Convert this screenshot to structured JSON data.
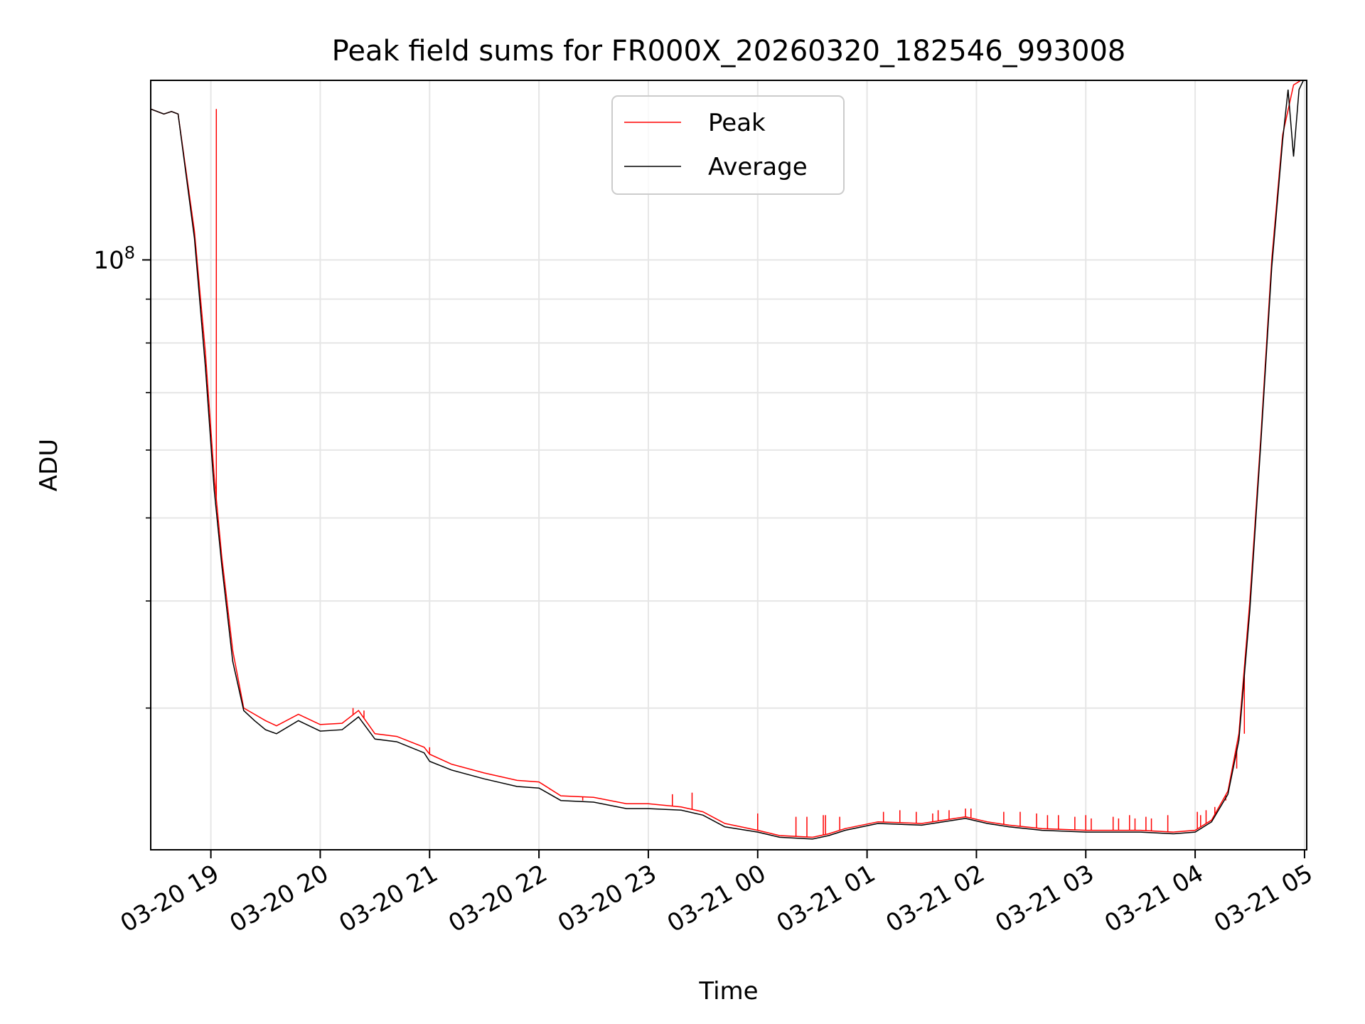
{
  "chart_data": {
    "type": "line",
    "title": "Peak field sums for FR000X_20260320_182546_993008",
    "xlabel": "Time",
    "ylabel": "ADU",
    "yscale": "log",
    "ylim": [
      20500000,
      162000000
    ],
    "xlim": [
      -0.55,
      10.02
    ],
    "grid": true,
    "legend_position": "top-center",
    "y_major_ticks": [
      {
        "value": 100000000,
        "mantissa": "10",
        "exponent": "8"
      }
    ],
    "y_minor_ticks": [
      30000000,
      40000000,
      50000000,
      60000000,
      70000000,
      80000000,
      90000000
    ],
    "x_ticks": [
      {
        "value": 0,
        "label": "03-20 19"
      },
      {
        "value": 1,
        "label": "03-20 20"
      },
      {
        "value": 2,
        "label": "03-20 21"
      },
      {
        "value": 3,
        "label": "03-20 22"
      },
      {
        "value": 4,
        "label": "03-20 23"
      },
      {
        "value": 5,
        "label": "03-21 00"
      },
      {
        "value": 6,
        "label": "03-21 01"
      },
      {
        "value": 7,
        "label": "03-21 02"
      },
      {
        "value": 8,
        "label": "03-21 03"
      },
      {
        "value": 9,
        "label": "03-21 04"
      },
      {
        "value": 10,
        "label": "03-21 05"
      }
    ],
    "x_unit_note": "hours since 2026-03-20 19:00",
    "series": [
      {
        "name": "Peak",
        "color": "#ff0000",
        "points": [
          [
            -0.55,
            150000000
          ],
          [
            -0.43,
            148000000
          ],
          [
            -0.36,
            149000000
          ],
          [
            -0.3,
            148000000
          ],
          [
            -0.15,
            108000000
          ],
          [
            -0.05,
            78000000
          ],
          [
            0.03,
            56000000
          ],
          [
            0.1,
            45000000
          ],
          [
            0.2,
            35000000
          ],
          [
            0.3,
            30000000
          ],
          [
            0.4,
            29500000
          ],
          [
            0.5,
            29000000
          ],
          [
            0.6,
            28600000
          ],
          [
            0.8,
            29500000
          ],
          [
            1.0,
            28700000
          ],
          [
            1.2,
            28800000
          ],
          [
            1.35,
            29800000
          ],
          [
            1.5,
            28000000
          ],
          [
            1.7,
            27800000
          ],
          [
            1.95,
            27000000
          ],
          [
            2.0,
            26500000
          ],
          [
            2.2,
            25800000
          ],
          [
            2.5,
            25200000
          ],
          [
            2.8,
            24700000
          ],
          [
            3.0,
            24600000
          ],
          [
            3.2,
            23700000
          ],
          [
            3.5,
            23600000
          ],
          [
            3.8,
            23200000
          ],
          [
            4.0,
            23200000
          ],
          [
            4.3,
            23000000
          ],
          [
            4.5,
            22700000
          ],
          [
            4.7,
            22000000
          ],
          [
            5.0,
            21600000
          ],
          [
            5.2,
            21300000
          ],
          [
            5.5,
            21200000
          ],
          [
            5.65,
            21400000
          ],
          [
            5.8,
            21700000
          ],
          [
            6.1,
            22100000
          ],
          [
            6.5,
            22000000
          ],
          [
            6.9,
            22400000
          ],
          [
            7.1,
            22100000
          ],
          [
            7.3,
            21900000
          ],
          [
            7.6,
            21700000
          ],
          [
            8.0,
            21600000
          ],
          [
            8.5,
            21600000
          ],
          [
            8.8,
            21500000
          ],
          [
            9.0,
            21600000
          ],
          [
            9.15,
            22200000
          ],
          [
            9.3,
            24000000
          ],
          [
            9.4,
            28000000
          ],
          [
            9.5,
            40000000
          ],
          [
            9.6,
            62000000
          ],
          [
            9.7,
            100000000
          ],
          [
            9.8,
            140000000
          ],
          [
            9.9,
            160000000
          ],
          [
            10.0,
            163000000
          ]
        ],
        "spikes": [
          [
            0.05,
            150000000
          ],
          [
            1.3,
            30000000
          ],
          [
            1.4,
            29800000
          ],
          [
            2.0,
            27000000
          ],
          [
            3.1,
            24100000
          ],
          [
            3.4,
            23400000
          ],
          [
            4.22,
            23800000
          ],
          [
            4.4,
            23900000
          ],
          [
            5.0,
            22600000
          ],
          [
            5.35,
            22400000
          ],
          [
            5.45,
            22400000
          ],
          [
            5.6,
            22500000
          ],
          [
            5.62,
            22500000
          ],
          [
            5.75,
            22400000
          ],
          [
            6.15,
            22700000
          ],
          [
            6.3,
            22800000
          ],
          [
            6.45,
            22700000
          ],
          [
            6.6,
            22600000
          ],
          [
            6.65,
            22800000
          ],
          [
            6.75,
            22800000
          ],
          [
            6.9,
            22900000
          ],
          [
            6.95,
            22900000
          ],
          [
            7.25,
            22700000
          ],
          [
            7.4,
            22700000
          ],
          [
            7.55,
            22600000
          ],
          [
            7.65,
            22500000
          ],
          [
            7.75,
            22500000
          ],
          [
            7.9,
            22400000
          ],
          [
            8.0,
            22500000
          ],
          [
            8.05,
            22300000
          ],
          [
            8.25,
            22400000
          ],
          [
            8.3,
            22300000
          ],
          [
            8.4,
            22500000
          ],
          [
            8.45,
            22300000
          ],
          [
            8.55,
            22400000
          ],
          [
            8.6,
            22300000
          ],
          [
            8.75,
            22500000
          ],
          [
            9.02,
            22700000
          ],
          [
            9.05,
            22500000
          ],
          [
            9.1,
            22800000
          ],
          [
            9.18,
            23000000
          ],
          [
            9.28,
            23400000
          ],
          [
            9.38,
            25500000
          ],
          [
            9.45,
            28000000
          ]
        ]
      },
      {
        "name": "Average",
        "color": "#000000",
        "points": [
          [
            -0.55,
            150000000
          ],
          [
            -0.43,
            148000000
          ],
          [
            -0.36,
            149000000
          ],
          [
            -0.3,
            148000000
          ],
          [
            -0.15,
            106000000
          ],
          [
            -0.05,
            75000000
          ],
          [
            0.03,
            54000000
          ],
          [
            0.1,
            44000000
          ],
          [
            0.2,
            34000000
          ],
          [
            0.3,
            29800000
          ],
          [
            0.4,
            29000000
          ],
          [
            0.5,
            28300000
          ],
          [
            0.6,
            28000000
          ],
          [
            0.8,
            29000000
          ],
          [
            1.0,
            28200000
          ],
          [
            1.2,
            28300000
          ],
          [
            1.35,
            29300000
          ],
          [
            1.5,
            27600000
          ],
          [
            1.7,
            27400000
          ],
          [
            1.95,
            26600000
          ],
          [
            2.0,
            26000000
          ],
          [
            2.2,
            25400000
          ],
          [
            2.5,
            24800000
          ],
          [
            2.8,
            24300000
          ],
          [
            3.0,
            24200000
          ],
          [
            3.2,
            23400000
          ],
          [
            3.5,
            23300000
          ],
          [
            3.8,
            22900000
          ],
          [
            4.0,
            22900000
          ],
          [
            4.3,
            22800000
          ],
          [
            4.5,
            22500000
          ],
          [
            4.7,
            21800000
          ],
          [
            5.0,
            21500000
          ],
          [
            5.2,
            21200000
          ],
          [
            5.5,
            21100000
          ],
          [
            5.65,
            21300000
          ],
          [
            5.8,
            21600000
          ],
          [
            6.1,
            22000000
          ],
          [
            6.5,
            21900000
          ],
          [
            6.9,
            22300000
          ],
          [
            7.1,
            22000000
          ],
          [
            7.3,
            21800000
          ],
          [
            7.6,
            21600000
          ],
          [
            8.0,
            21500000
          ],
          [
            8.5,
            21500000
          ],
          [
            8.8,
            21400000
          ],
          [
            9.0,
            21500000
          ],
          [
            9.15,
            22100000
          ],
          [
            9.3,
            23800000
          ],
          [
            9.4,
            27500000
          ],
          [
            9.5,
            39000000
          ],
          [
            9.6,
            61000000
          ],
          [
            9.7,
            98000000
          ],
          [
            9.8,
            138000000
          ],
          [
            9.85,
            158000000
          ],
          [
            9.9,
            132000000
          ],
          [
            9.95,
            158000000
          ],
          [
            10.0,
            163000000
          ]
        ]
      }
    ]
  }
}
